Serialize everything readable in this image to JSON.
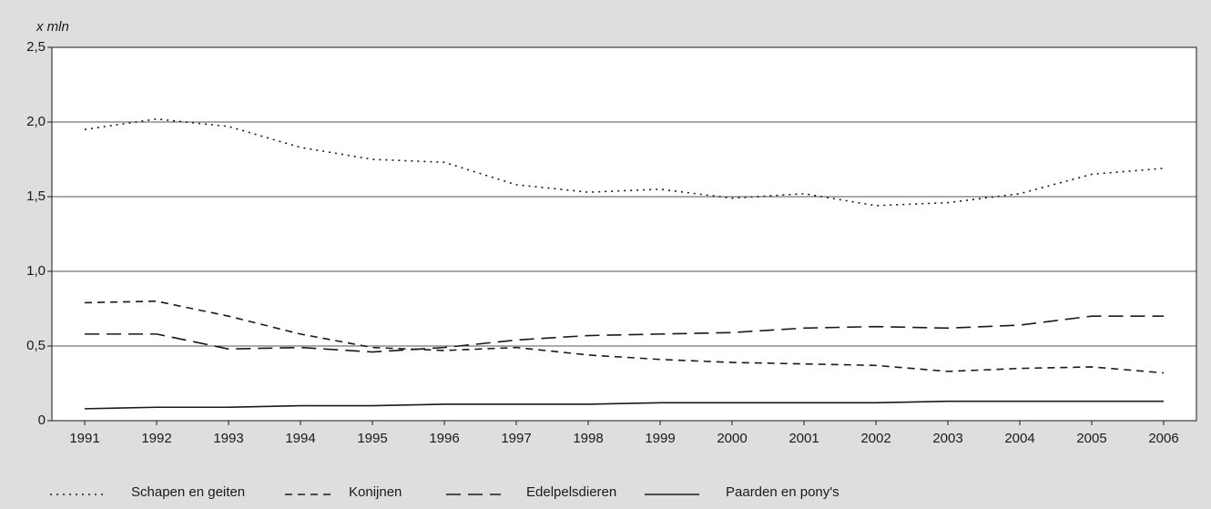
{
  "chart_data": {
    "type": "line",
    "y_label": "x mln",
    "categories": [
      "1991",
      "1992",
      "1993",
      "1994",
      "1995",
      "1996",
      "1997",
      "1998",
      "1999",
      "2000",
      "2001",
      "2002",
      "2003",
      "2004",
      "2005",
      "2006"
    ],
    "series": [
      {
        "name": "Schapen en geiten",
        "color": "#1a1a1a",
        "dash": "dotted",
        "values": [
          1.95,
          2.02,
          1.97,
          1.83,
          1.75,
          1.73,
          1.58,
          1.53,
          1.55,
          1.49,
          1.52,
          1.44,
          1.46,
          1.52,
          1.65,
          1.69
        ]
      },
      {
        "name": "Konijnen",
        "color": "#1a1a1a",
        "dash": "dashed",
        "values": [
          0.79,
          0.8,
          0.7,
          0.58,
          0.49,
          0.47,
          0.49,
          0.44,
          0.41,
          0.39,
          0.38,
          0.37,
          0.33,
          0.35,
          0.36,
          0.32
        ]
      },
      {
        "name": "Edelpelsdieren",
        "color": "#1a1a1a",
        "dash": "longdash",
        "values": [
          0.58,
          0.58,
          0.48,
          0.49,
          0.46,
          0.49,
          0.54,
          0.57,
          0.58,
          0.59,
          0.62,
          0.63,
          0.62,
          0.64,
          0.7,
          0.7
        ]
      },
      {
        "name": "Paarden en pony's",
        "color": "#1a1a1a",
        "dash": "solid",
        "values": [
          0.08,
          0.09,
          0.09,
          0.1,
          0.1,
          0.11,
          0.11,
          0.11,
          0.12,
          0.12,
          0.12,
          0.12,
          0.13,
          0.13,
          0.13,
          0.13
        ]
      }
    ],
    "ylim": [
      0,
      2.5
    ],
    "yticks": [
      0,
      {
        "value": 0.5,
        "label": "0,5"
      },
      {
        "value": 1.0,
        "label": "1,0"
      },
      {
        "value": 1.5,
        "label": "1,5"
      },
      {
        "value": 2.0,
        "label": "2,0"
      },
      {
        "value": 2.5,
        "label": "2,5"
      }
    ],
    "grid": true,
    "legend": "bottom"
  }
}
